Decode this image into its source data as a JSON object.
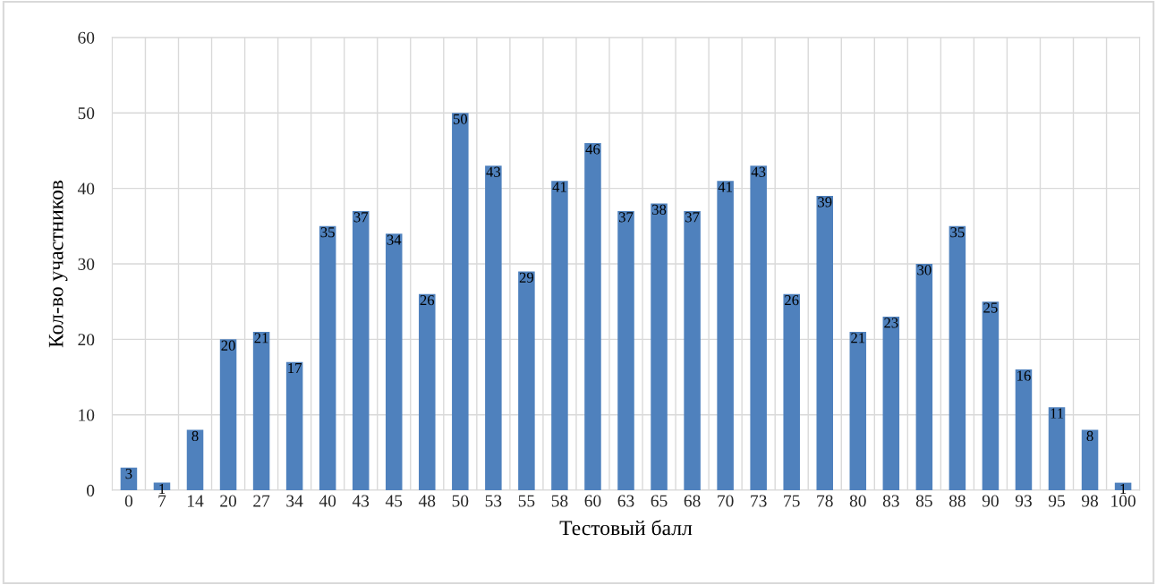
{
  "chart_data": {
    "type": "bar",
    "xlabel": "Тестовый балл",
    "ylabel": "Кол-во участников",
    "categories": [
      "0",
      "7",
      "14",
      "20",
      "27",
      "34",
      "40",
      "43",
      "45",
      "48",
      "50",
      "53",
      "55",
      "58",
      "60",
      "63",
      "65",
      "68",
      "70",
      "73",
      "75",
      "78",
      "80",
      "83",
      "85",
      "88",
      "90",
      "93",
      "95",
      "98",
      "100"
    ],
    "values": [
      3,
      1,
      8,
      20,
      21,
      17,
      35,
      37,
      34,
      26,
      50,
      43,
      29,
      41,
      46,
      37,
      38,
      37,
      41,
      43,
      26,
      39,
      21,
      23,
      30,
      35,
      25,
      16,
      11,
      8,
      1
    ],
    "color": "#4f81bd",
    "ylim": [
      0,
      60
    ],
    "yticks": [
      0,
      10,
      20,
      30,
      40,
      50,
      60
    ],
    "grid": true,
    "data_labels": true,
    "legend": false
  }
}
